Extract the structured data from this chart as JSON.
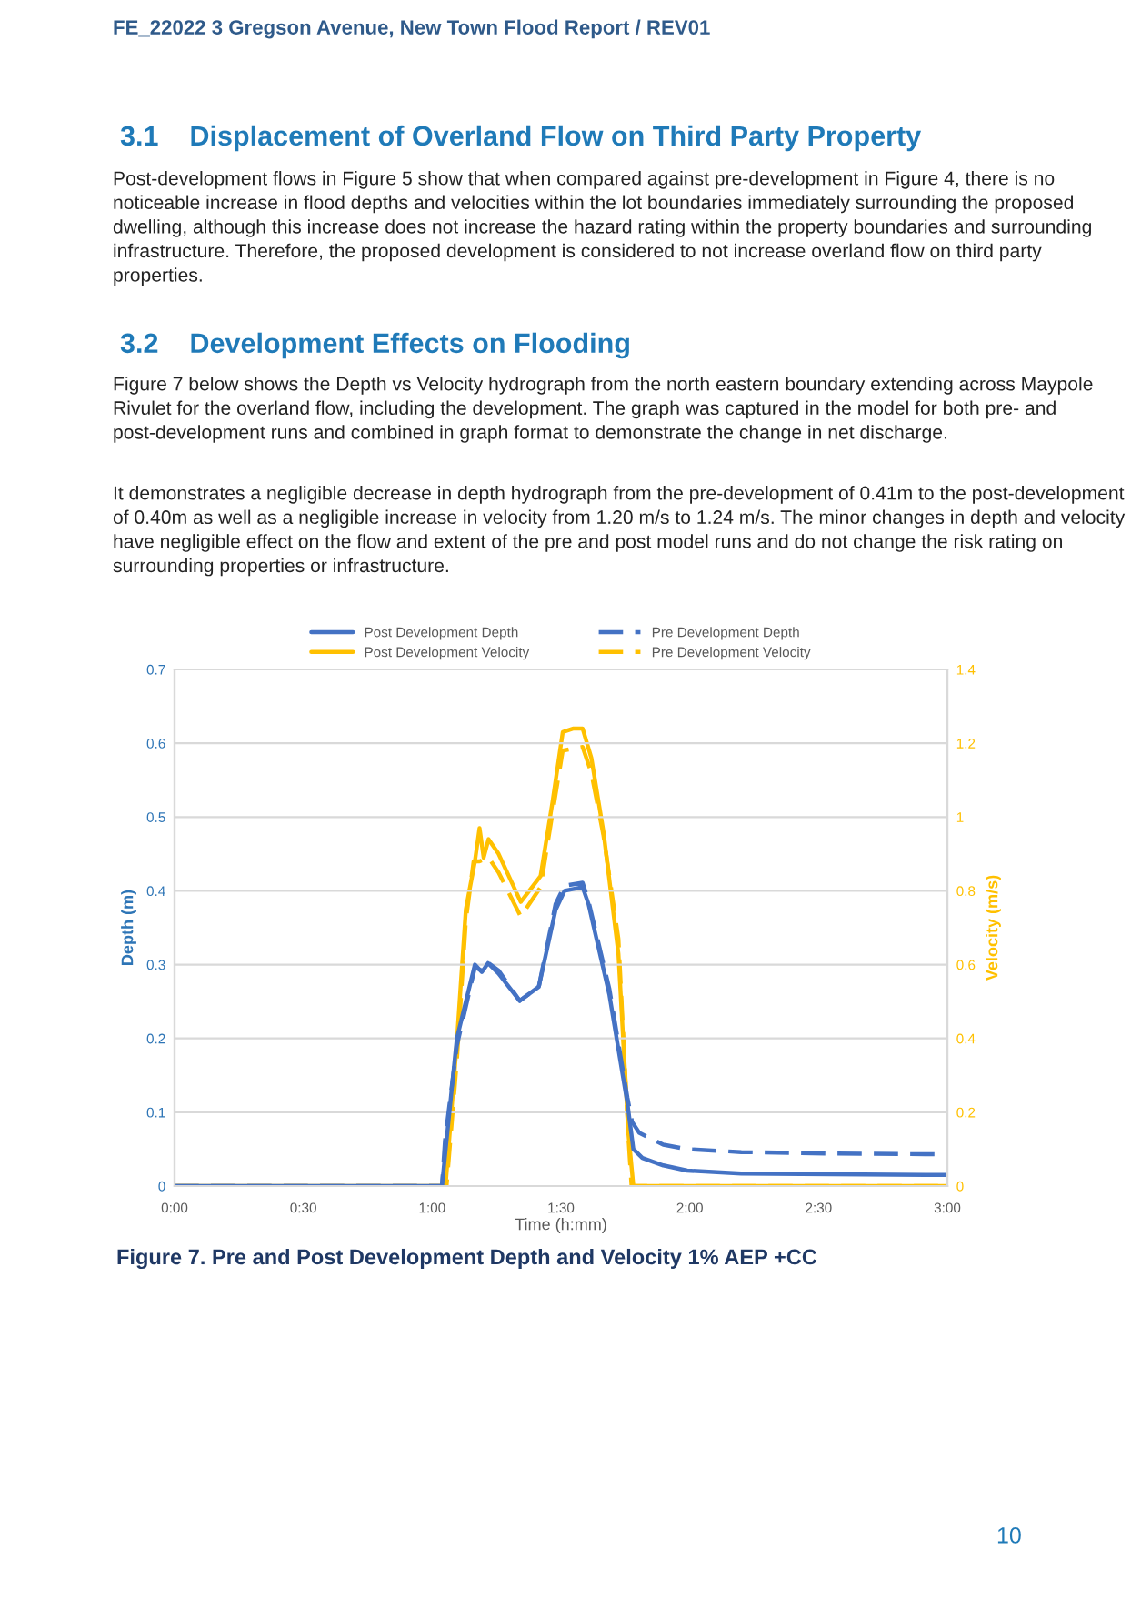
{
  "chart_data": {
    "type": "line",
    "title": "Figure 7. Pre and Post Development Depth and Velocity 1% AEP +CC",
    "xlabel": "Time (h:mm)",
    "ylabel": "Depth (m)",
    "y2label": "Velocity (m/s)",
    "xlim": [
      0,
      3
    ],
    "xticks": [
      {
        "value": 0,
        "label": "0:00"
      },
      {
        "value": 0.5,
        "label": "0:30"
      },
      {
        "value": 1,
        "label": "1:00"
      },
      {
        "value": 1.5,
        "label": "1:30"
      },
      {
        "value": 2,
        "label": "2:00"
      },
      {
        "value": 2.5,
        "label": "2:30"
      },
      {
        "value": 3,
        "label": "3:00"
      }
    ],
    "ylim": [
      0,
      0.7
    ],
    "yticks": [
      0,
      0.1,
      0.2,
      0.3,
      0.4,
      0.5,
      0.6,
      0.7
    ],
    "y2lim": [
      0,
      1.4
    ],
    "y2ticks": [
      0,
      0.2,
      0.4,
      0.6,
      0.8,
      1,
      1.2,
      1.4
    ],
    "grid": "y",
    "legend": "top",
    "series": [
      {
        "name": "Post Development Depth",
        "color": "#4472c4",
        "line_style": "solid",
        "x": [
          0,
          1.038,
          1.096,
          1.166,
          1.193,
          1.217,
          1.258,
          1.34,
          1.414,
          1.479,
          1.514,
          1.584,
          1.607,
          1.688,
          1.758,
          1.781,
          1.816,
          1.897,
          1.99,
          2.2,
          2.55,
          3.0
        ],
        "values": [
          0,
          0,
          0.2,
          0.3,
          0.29,
          0.302,
          0.288,
          0.251,
          0.27,
          0.374,
          0.4,
          0.405,
          0.382,
          0.259,
          0.112,
          0.05,
          0.038,
          0.028,
          0.021,
          0.017,
          0.016,
          0.015
        ]
      },
      {
        "name": "Pre Development Depth",
        "color": "#4472c4",
        "line_style": "dashed",
        "x": [
          0,
          1.038,
          1.05,
          1.096,
          1.166,
          1.193,
          1.212,
          1.258,
          1.34,
          1.414,
          1.479,
          1.514,
          1.584,
          1.607,
          1.688,
          1.758,
          1.776,
          1.804,
          1.897,
          1.99,
          2.2,
          2.55,
          3.0
        ],
        "values": [
          0,
          0,
          0.062,
          0.19,
          0.296,
          0.292,
          0.304,
          0.292,
          0.251,
          0.27,
          0.382,
          0.407,
          0.411,
          0.386,
          0.267,
          0.12,
          0.087,
          0.072,
          0.056,
          0.05,
          0.046,
          0.044,
          0.043
        ]
      },
      {
        "name": "Post Development Velocity",
        "color": "#ffc000",
        "line_style": "solid",
        "axis": "y2",
        "x": [
          0,
          1.052,
          1.096,
          1.131,
          1.166,
          1.184,
          1.2,
          1.219,
          1.258,
          1.344,
          1.421,
          1.467,
          1.507,
          1.549,
          1.584,
          1.618,
          1.665,
          1.723,
          1.762,
          1.781,
          3.0
        ],
        "values": [
          0,
          0,
          0.39,
          0.75,
          0.88,
          0.97,
          0.89,
          0.94,
          0.9,
          0.77,
          0.84,
          1.04,
          1.23,
          1.24,
          1.24,
          1.16,
          0.96,
          0.63,
          0.14,
          0,
          0
        ]
      },
      {
        "name": "Pre Development Velocity",
        "color": "#ffc000",
        "line_style": "dashed",
        "axis": "y2",
        "x": [
          0,
          1.056,
          1.096,
          1.131,
          1.161,
          1.184,
          1.219,
          1.258,
          1.344,
          1.421,
          1.467,
          1.507,
          1.584,
          1.618,
          1.665,
          1.723,
          1.762,
          1.774,
          3.0
        ],
        "values": [
          0,
          0,
          0.34,
          0.72,
          0.88,
          0.88,
          0.89,
          0.85,
          0.73,
          0.81,
          1.01,
          1.18,
          1.19,
          1.12,
          0.95,
          0.67,
          0.13,
          0,
          0
        ]
      }
    ],
    "annotations": [
      "FE_22022 3 Gregson Avenue, New Town Flood Report / REV01",
      "3.1    Displacement of Overland Flow on Third Party Property",
      "Post-development flows in Figure 5 show that when compared against pre-development in Figure 4, there is no noticeable increase in flood depths and velocities within the lot boundaries immediately surrounding the proposed dwelling, although this increase does not increase the hazard rating within the property boundaries and surrounding infrastructure. Therefore, the proposed development is considered to not increase overland flow on third party properties.",
      "3.2    Development Effects on Flooding",
      "Figure 7 below shows the Depth vs Velocity hydrograph from the north eastern boundary extending across Maypole Rivulet for the overland flow, including the development. The graph was captured in the model for both pre- and post-development runs and combined in graph format to demonstrate the change in net discharge.",
      "It demonstrates a negligible decrease in depth hydrograph from the pre-development of 0.41m to the post-development of 0.40m as well as a negligible increase in velocity from 1.20 m/s to 1.24 m/s. The minor changes in depth and velocity have negligible effect on the flow and extent of the pre and post model runs and do not change the risk rating on surrounding properties or infrastructure.",
      "10"
    ]
  }
}
